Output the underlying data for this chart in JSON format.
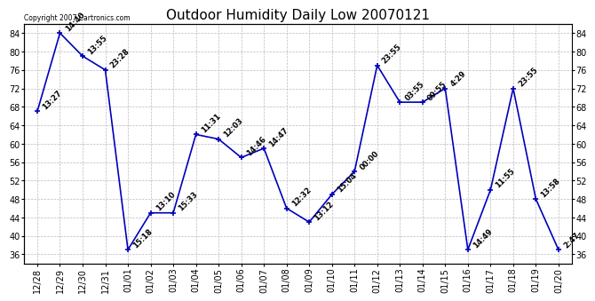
{
  "title": "Outdoor Humidity Daily Low 20070121",
  "copyright": "Copyright 2007 Cartronics.com",
  "x_labels": [
    "12/28",
    "12/29",
    "12/30",
    "12/31",
    "01/01",
    "01/02",
    "01/03",
    "01/04",
    "01/05",
    "01/06",
    "01/07",
    "01/08",
    "01/09",
    "01/10",
    "01/11",
    "01/12",
    "01/13",
    "01/14",
    "01/15",
    "01/16",
    "01/17",
    "01/18",
    "01/19",
    "01/20"
  ],
  "y_values": [
    67,
    84,
    79,
    76,
    37,
    45,
    45,
    62,
    61,
    57,
    59,
    46,
    43,
    49,
    54,
    77,
    69,
    69,
    72,
    37,
    50,
    72,
    48,
    37
  ],
  "point_labels": [
    "13:27",
    "14:40",
    "13:55",
    "23:28",
    "15:18",
    "13:10",
    "15:33",
    "11:31",
    "12:03",
    "14:46",
    "14:47",
    "12:32",
    "13:12",
    "15:04",
    "00:00",
    "23:55",
    "03:55",
    "09:55",
    "4:29",
    "14:49",
    "11:55",
    "23:55",
    "13:58",
    "2:47"
  ],
  "ylim": [
    34,
    86
  ],
  "yticks": [
    36,
    40,
    44,
    48,
    52,
    56,
    60,
    64,
    68,
    72,
    76,
    80,
    84
  ],
  "line_color": "#0000bb",
  "bg_color": "#ffffff",
  "grid_color": "#bbbbbb",
  "title_fontsize": 11,
  "label_fontsize": 6.5,
  "tick_fontsize": 7,
  "annot_fontsize": 6
}
